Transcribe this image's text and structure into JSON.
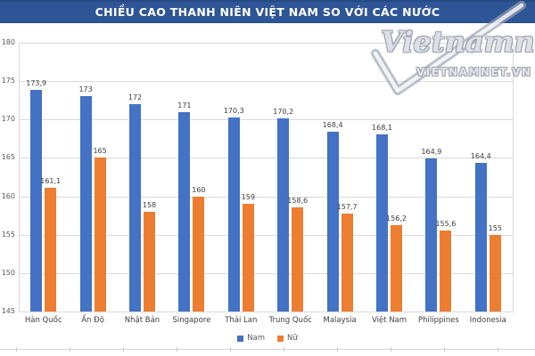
{
  "header": {
    "title": "CHIỀU CAO THANH NIÊN VIỆT NAM SO VỚI CÁC NƯỚC",
    "banner_color": "#2E5596"
  },
  "watermark": {
    "script_text": "Vietnamnet",
    "domain_text": "VIETNAMNET.VN",
    "color": "#939CAA"
  },
  "chart_data": {
    "type": "bar",
    "title": "CHIỀU CAO THANH NIÊN VIỆT NAM SO VỚI CÁC NƯỚC",
    "categories": [
      "Hàn Quốc",
      "Ấn Độ",
      "Nhật Bản",
      "Singapore",
      "Thái Lan",
      "Trung Quốc",
      "Malaysia",
      "Việt Nam",
      "Philippines",
      "Indonesia"
    ],
    "series": [
      {
        "name": "Nam",
        "color": "#4472C4",
        "values": [
          173.9,
          173,
          172,
          171,
          170.3,
          170.2,
          168.4,
          168.1,
          164.9,
          164.4
        ],
        "labels": [
          "173,9",
          "173",
          "172",
          "171",
          "170,3",
          "170,2",
          "168,4",
          "168,1",
          "164,9",
          "164,4"
        ]
      },
      {
        "name": "Nữ",
        "color": "#ED7D31",
        "values": [
          161.1,
          165,
          158,
          160,
          159,
          158.6,
          157.7,
          156.2,
          155.6,
          155
        ],
        "labels": [
          "161,1",
          "165",
          "158",
          "160",
          "159",
          "158,6",
          "157,7",
          "156,2",
          "155,6",
          "155"
        ]
      }
    ],
    "ylim": [
      145,
      180
    ],
    "yticks": [
      145,
      150,
      155,
      160,
      165,
      170,
      175,
      180
    ],
    "grid": true,
    "legend_position": "bottom",
    "gridline_color": "#D9D9D9",
    "value_label_color": "#404040",
    "axis_text_color": "#595959"
  }
}
